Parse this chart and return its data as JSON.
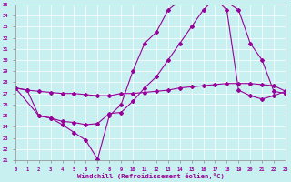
{
  "xlabel": "Windchill (Refroidissement éolien,°C)",
  "bg_color": "#c8f0f0",
  "line_color": "#990099",
  "xmin": 0,
  "xmax": 23,
  "ymin": 21,
  "ymax": 35,
  "line1_x": [
    0,
    1,
    2,
    3,
    4,
    5,
    6,
    7,
    8,
    9,
    10,
    11,
    12,
    13,
    14,
    15,
    16,
    17,
    18,
    19,
    20,
    21,
    22,
    23
  ],
  "line1_y": [
    27.5,
    27.3,
    27.2,
    27.1,
    27.0,
    27.0,
    26.9,
    26.8,
    26.8,
    27.0,
    27.0,
    27.1,
    27.2,
    27.3,
    27.5,
    27.6,
    27.7,
    27.8,
    27.9,
    27.9,
    27.9,
    27.8,
    27.7,
    27.2
  ],
  "line2_x": [
    0,
    1,
    2,
    3,
    4,
    5,
    6,
    7,
    8,
    9,
    10,
    11,
    12,
    13,
    14,
    15,
    16,
    17,
    18,
    19,
    20,
    21,
    22,
    23
  ],
  "line2_y": [
    27.5,
    27.3,
    25.0,
    24.8,
    24.2,
    23.5,
    22.8,
    21.1,
    25.0,
    26.0,
    29.0,
    31.5,
    32.5,
    34.5,
    35.3,
    35.5,
    35.5,
    35.4,
    35.2,
    34.5,
    31.5,
    30.0,
    27.2,
    27.0
  ],
  "line3_x": [
    0,
    2,
    3,
    4,
    5,
    6,
    7,
    8,
    9,
    10,
    11,
    12,
    13,
    14,
    15,
    16,
    17,
    18,
    19,
    20,
    21,
    22,
    23
  ],
  "line3_y": [
    27.5,
    25.0,
    24.8,
    24.5,
    24.4,
    24.2,
    24.3,
    25.2,
    25.3,
    26.3,
    27.5,
    28.5,
    30.0,
    31.5,
    33.0,
    34.5,
    35.5,
    34.5,
    27.3,
    26.8,
    26.5,
    26.8,
    27.2
  ]
}
